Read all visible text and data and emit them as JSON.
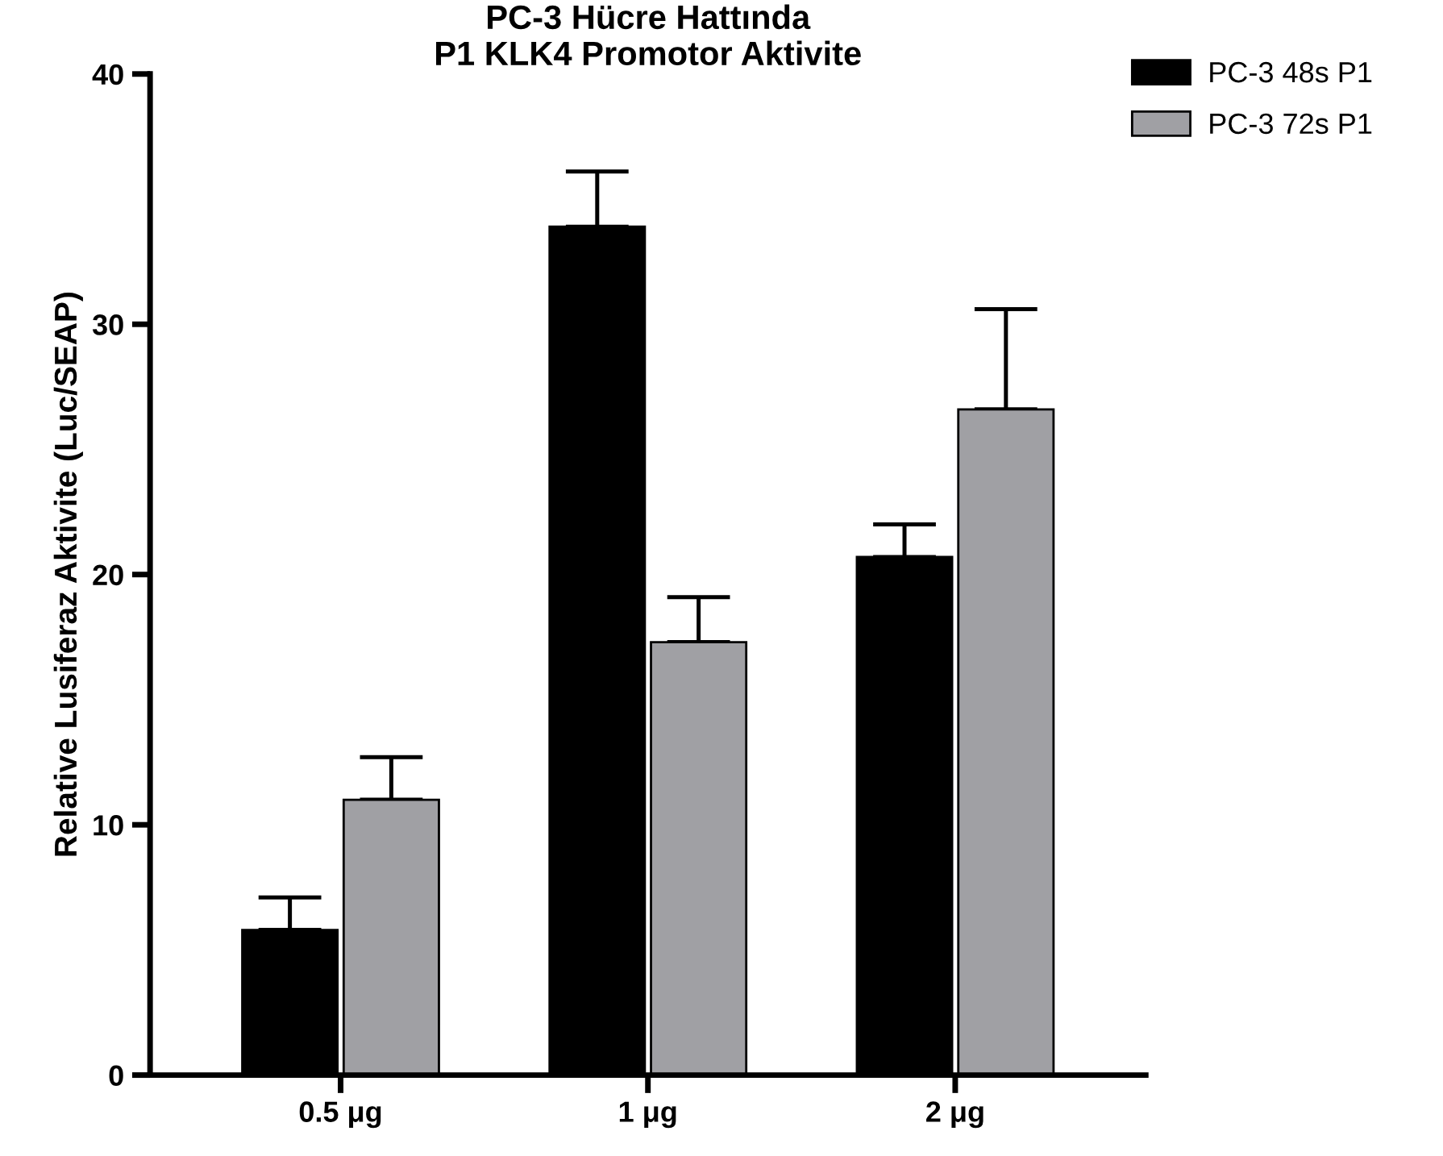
{
  "chart_data": {
    "type": "bar",
    "title": "PC-3 Hücre Hattında\nP1 KLK4 Promotor Aktivite",
    "ylabel": "Relative Lusiferaz Aktivite (Luc/SEAP)",
    "categories": [
      "0.5 μg",
      "1 μg",
      "2 μg"
    ],
    "series": [
      {
        "name": "PC-3 48s P1",
        "color": "#000000",
        "values": [
          5.8,
          33.9,
          20.7
        ],
        "errors": [
          [
            5.8,
            7.1
          ],
          [
            33.9,
            36.1
          ],
          [
            20.7,
            22.0
          ]
        ]
      },
      {
        "name": "PC-3 72s P1",
        "color": "#a0a0a4",
        "values": [
          11.0,
          17.3,
          26.6
        ],
        "errors": [
          [
            11.0,
            12.7
          ],
          [
            17.3,
            19.1
          ],
          [
            26.6,
            30.6
          ]
        ]
      }
    ],
    "ylim": [
      0,
      40
    ],
    "yticks": [
      0,
      10,
      20,
      30,
      40
    ],
    "grid": false,
    "legend": "top right"
  }
}
